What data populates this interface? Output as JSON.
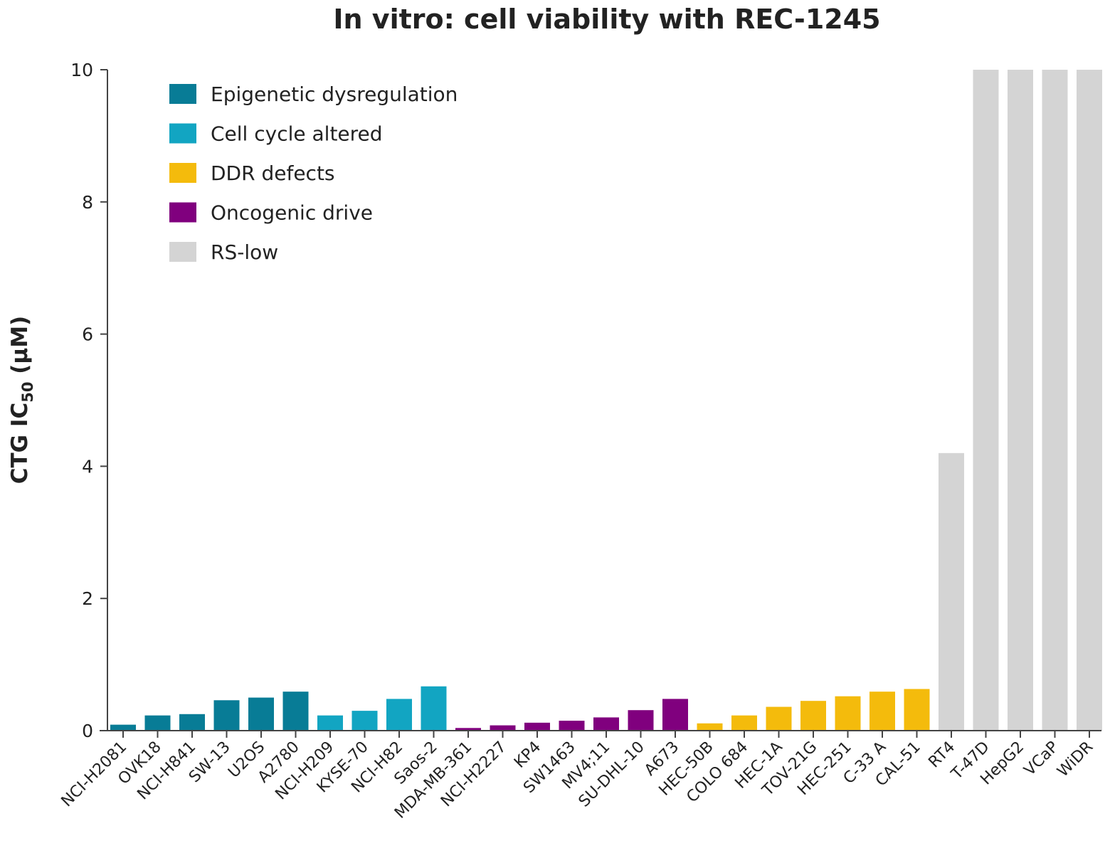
{
  "chart_data": {
    "type": "bar",
    "title": "In vitro: cell viability with REC-1245",
    "xlabel": "",
    "ylabel": "CTG IC",
    "ylabel_subscript": "50",
    "ylabel_unit": " (µM)",
    "ylim": [
      0,
      10
    ],
    "yticks": [
      0,
      2,
      4,
      6,
      8,
      10
    ],
    "grid": false,
    "legend_position": "top-left",
    "groups": [
      {
        "name": "Epigenetic dysregulation",
        "color": "#087c96"
      },
      {
        "name": "Cell cycle altered",
        "color": "#12a5c2"
      },
      {
        "name": "DDR defects",
        "color": "#f4bb0c"
      },
      {
        "name": "Oncogenic drive",
        "color": "#80007e"
      },
      {
        "name": "RS-low",
        "color": "#d4d4d4"
      }
    ],
    "categories": [
      "NCI-H2081",
      "OVK18",
      "NCI-H841",
      "SW-13",
      "U2OS",
      "A2780",
      "NCI-H209",
      "KYSE-70",
      "NCI-H82",
      "Saos-2",
      "MDA-MB-361",
      "NCI-H2227",
      "KP4",
      "SW1463",
      "MV4;11",
      "SU-DHL-10",
      "A673",
      "HEC-50B",
      "COLO 684",
      "HEC-1A",
      "TOV-21G",
      "HEC-251",
      "C-33 A",
      "CAL-51",
      "RT4",
      "T-47D",
      "HepG2",
      "VCaP",
      "WiDR"
    ],
    "values": [
      0.09,
      0.23,
      0.25,
      0.46,
      0.5,
      0.59,
      0.23,
      0.3,
      0.48,
      0.67,
      0.04,
      0.08,
      0.12,
      0.15,
      0.2,
      0.31,
      0.48,
      0.11,
      0.23,
      0.36,
      0.45,
      0.52,
      0.59,
      0.63,
      4.2,
      10,
      10,
      10,
      10
    ],
    "group_index": [
      0,
      0,
      0,
      0,
      0,
      0,
      1,
      1,
      1,
      1,
      3,
      3,
      3,
      3,
      3,
      3,
      3,
      2,
      2,
      2,
      2,
      2,
      2,
      2,
      4,
      4,
      4,
      4,
      4
    ]
  }
}
